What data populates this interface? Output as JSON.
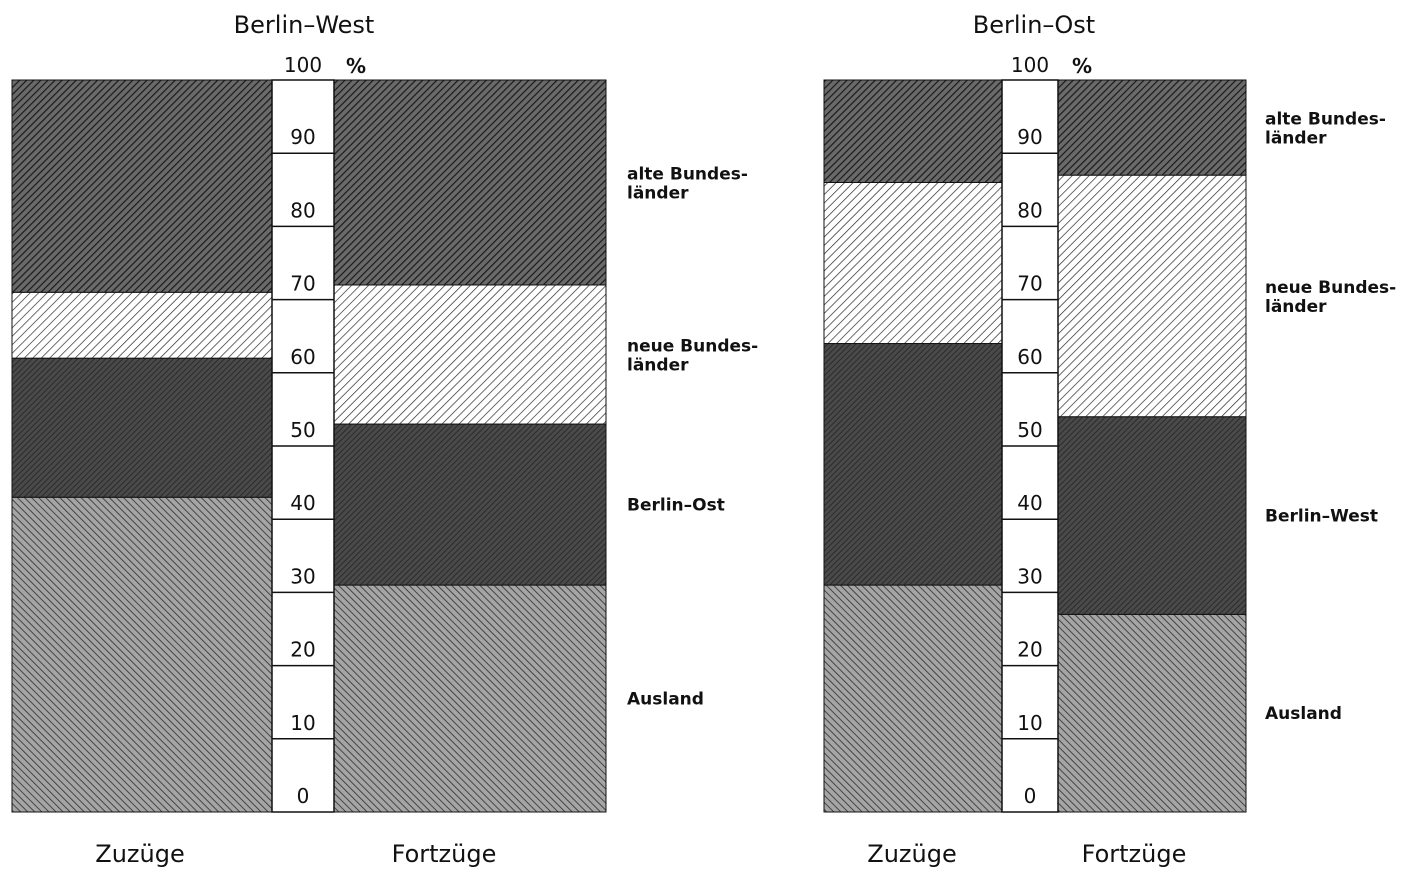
{
  "chart_data": [
    {
      "type": "bar",
      "stacked": true,
      "title": "Berlin–West",
      "unit": "%",
      "ylim": [
        0,
        100
      ],
      "yticks": [
        0,
        10,
        20,
        30,
        40,
        50,
        60,
        70,
        80,
        90,
        100
      ],
      "categories": [
        "Zuzüge",
        "Fortzüge"
      ],
      "series": [
        {
          "name": "Ausland",
          "values": [
            43,
            31
          ],
          "color": "#8a8a8a"
        },
        {
          "name": "Berlin–Ost",
          "values": [
            19,
            22
          ],
          "color": "#333333"
        },
        {
          "name": "neue Bundes-\nländer",
          "values": [
            9,
            19
          ],
          "color": "#e6e6e6"
        },
        {
          "name": "alte Bundes-\nländer",
          "values": [
            29,
            28
          ],
          "color": "#5a5a5a"
        }
      ]
    },
    {
      "type": "bar",
      "stacked": true,
      "title": "Berlin–Ost",
      "unit": "%",
      "ylim": [
        0,
        100
      ],
      "yticks": [
        0,
        10,
        20,
        30,
        40,
        50,
        60,
        70,
        80,
        90,
        100
      ],
      "categories": [
        "Zuzüge",
        "Fortzüge"
      ],
      "series": [
        {
          "name": "Ausland",
          "values": [
            31,
            27
          ],
          "color": "#8a8a8a"
        },
        {
          "name": "Berlin–West",
          "values": [
            33,
            27
          ],
          "color": "#333333"
        },
        {
          "name": "neue Bundes-\nländer",
          "values": [
            22,
            33
          ],
          "color": "#e6e6e6"
        },
        {
          "name": "alte Bundes-\nländer",
          "values": [
            14,
            13
          ],
          "color": "#5a5a5a"
        }
      ]
    }
  ]
}
